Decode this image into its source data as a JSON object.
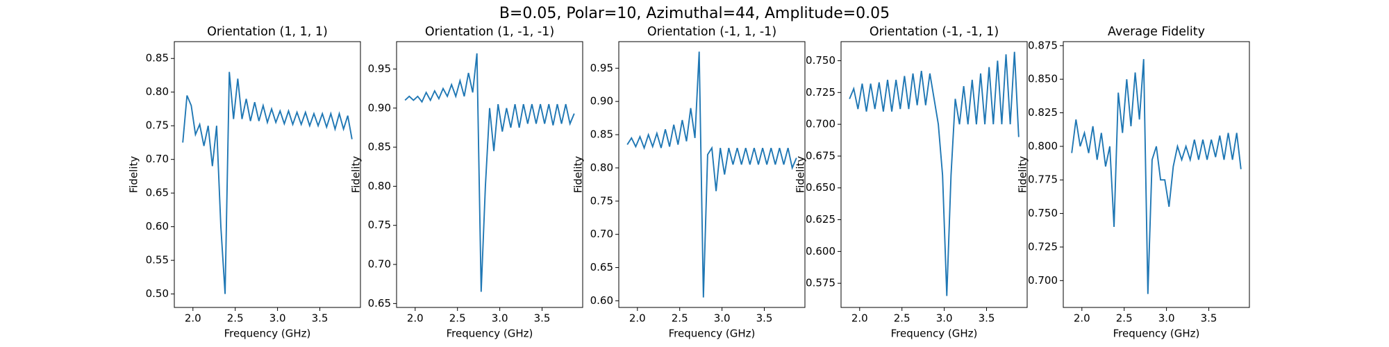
{
  "title": "B=0.05, Polar=10, Azimuthal=44, Amplitude=0.05",
  "chart_data": [
    {
      "type": "line",
      "title": "Orientation (1, 1, 1)",
      "x_label": "Frequency (GHz)",
      "y_label": "Fidelity",
      "x": [
        1.88,
        1.93,
        1.98,
        2.03,
        2.08,
        2.13,
        2.18,
        2.23,
        2.28,
        2.33,
        2.38,
        2.43,
        2.48,
        2.53,
        2.58,
        2.63,
        2.68,
        2.73,
        2.78,
        2.83,
        2.88,
        2.93,
        2.98,
        3.03,
        3.08,
        3.13,
        3.18,
        3.23,
        3.28,
        3.33,
        3.38,
        3.43,
        3.48,
        3.53,
        3.58,
        3.63,
        3.68,
        3.73,
        3.78,
        3.83,
        3.88
      ],
      "series": [
        {
          "color": "#1f77b4",
          "values": [
            0.725,
            0.795,
            0.78,
            0.737,
            0.752,
            0.72,
            0.75,
            0.69,
            0.75,
            0.6,
            0.5,
            0.83,
            0.76,
            0.82,
            0.76,
            0.79,
            0.757,
            0.785,
            0.757,
            0.78,
            0.755,
            0.775,
            0.755,
            0.772,
            0.753,
            0.772,
            0.752,
            0.77,
            0.752,
            0.77,
            0.75,
            0.768,
            0.75,
            0.768,
            0.748,
            0.768,
            0.745,
            0.768,
            0.745,
            0.765,
            0.73
          ]
        }
      ],
      "xlim": [
        1.78,
        3.98
      ],
      "xticks": [
        {
          "value": 2,
          "label": "2.0"
        },
        2.5,
        {
          "value": 3,
          "label": "3.0"
        },
        3.5
      ],
      "ylim": [
        0.48,
        0.875
      ],
      "yticks": [
        {
          "value": 0.5,
          "label": "0.50"
        },
        0.55,
        {
          "value": 0.6,
          "label": "0.60"
        },
        0.65,
        {
          "value": 0.7,
          "label": "0.70"
        },
        0.75,
        {
          "value": 0.8,
          "label": "0.80"
        },
        0.85
      ]
    },
    {
      "type": "line",
      "title": "Orientation (1, -1, -1)",
      "x_label": "Frequency (GHz)",
      "y_label": "Fidelity",
      "x": [
        1.88,
        1.93,
        1.98,
        2.03,
        2.08,
        2.13,
        2.18,
        2.23,
        2.28,
        2.33,
        2.38,
        2.43,
        2.48,
        2.53,
        2.58,
        2.63,
        2.68,
        2.73,
        2.78,
        2.83,
        2.88,
        2.93,
        2.98,
        3.03,
        3.08,
        3.13,
        3.18,
        3.23,
        3.28,
        3.33,
        3.38,
        3.43,
        3.48,
        3.53,
        3.58,
        3.63,
        3.68,
        3.73,
        3.78,
        3.83,
        3.88
      ],
      "series": [
        {
          "color": "#1f77b4",
          "values": [
            0.91,
            0.915,
            0.91,
            0.915,
            0.908,
            0.92,
            0.91,
            0.922,
            0.912,
            0.925,
            0.915,
            0.93,
            0.915,
            0.935,
            0.915,
            0.945,
            0.92,
            0.97,
            0.665,
            0.8,
            0.9,
            0.845,
            0.905,
            0.87,
            0.9,
            0.875,
            0.905,
            0.875,
            0.905,
            0.88,
            0.905,
            0.88,
            0.905,
            0.88,
            0.905,
            0.878,
            0.905,
            0.88,
            0.905,
            0.88,
            0.893
          ]
        }
      ],
      "xlim": [
        1.78,
        3.98
      ],
      "xticks": [
        {
          "value": 2,
          "label": "2.0"
        },
        2.5,
        {
          "value": 3,
          "label": "3.0"
        },
        3.5
      ],
      "ylim": [
        0.645,
        0.985
      ],
      "yticks": [
        0.65,
        {
          "value": 0.7,
          "label": "0.70"
        },
        0.75,
        {
          "value": 0.8,
          "label": "0.80"
        },
        0.85,
        {
          "value": 0.9,
          "label": "0.90"
        },
        0.95
      ]
    },
    {
      "type": "line",
      "title": "Orientation (-1, 1, -1)",
      "x_label": "Frequency (GHz)",
      "y_label": "Fidelity",
      "x": [
        1.88,
        1.93,
        1.98,
        2.03,
        2.08,
        2.13,
        2.18,
        2.23,
        2.28,
        2.33,
        2.38,
        2.43,
        2.48,
        2.53,
        2.58,
        2.63,
        2.68,
        2.73,
        2.78,
        2.83,
        2.88,
        2.93,
        2.98,
        3.03,
        3.08,
        3.13,
        3.18,
        3.23,
        3.28,
        3.33,
        3.38,
        3.43,
        3.48,
        3.53,
        3.58,
        3.63,
        3.68,
        3.73,
        3.78,
        3.83,
        3.88
      ],
      "series": [
        {
          "color": "#1f77b4",
          "values": [
            0.835,
            0.845,
            0.832,
            0.847,
            0.83,
            0.85,
            0.832,
            0.852,
            0.83,
            0.858,
            0.832,
            0.865,
            0.835,
            0.872,
            0.84,
            0.89,
            0.845,
            0.975,
            0.605,
            0.82,
            0.83,
            0.765,
            0.83,
            0.79,
            0.83,
            0.805,
            0.83,
            0.805,
            0.83,
            0.805,
            0.83,
            0.805,
            0.83,
            0.805,
            0.83,
            0.805,
            0.83,
            0.805,
            0.83,
            0.8,
            0.815
          ]
        }
      ],
      "xlim": [
        1.78,
        3.98
      ],
      "xticks": [
        {
          "value": 2,
          "label": "2.0"
        },
        2.5,
        {
          "value": 3,
          "label": "3.0"
        },
        3.5
      ],
      "ylim": [
        0.59,
        0.99
      ],
      "yticks": [
        {
          "value": 0.6,
          "label": "0.60"
        },
        0.65,
        {
          "value": 0.7,
          "label": "0.70"
        },
        0.75,
        {
          "value": 0.8,
          "label": "0.80"
        },
        0.85,
        {
          "value": 0.9,
          "label": "0.90"
        },
        0.95
      ]
    },
    {
      "type": "line",
      "title": "Orientation (-1, -1, 1)",
      "x_label": "Frequency (GHz)",
      "y_label": "Fidelity",
      "x": [
        1.88,
        1.93,
        1.98,
        2.03,
        2.08,
        2.13,
        2.18,
        2.23,
        2.28,
        2.33,
        2.38,
        2.43,
        2.48,
        2.53,
        2.58,
        2.63,
        2.68,
        2.73,
        2.78,
        2.83,
        2.88,
        2.93,
        2.98,
        3.03,
        3.08,
        3.13,
        3.18,
        3.23,
        3.28,
        3.33,
        3.38,
        3.43,
        3.48,
        3.53,
        3.58,
        3.63,
        3.68,
        3.73,
        3.78,
        3.83,
        3.88
      ],
      "series": [
        {
          "color": "#1f77b4",
          "values": [
            0.72,
            0.728,
            0.712,
            0.732,
            0.71,
            0.732,
            0.712,
            0.733,
            0.71,
            0.735,
            0.71,
            0.735,
            0.712,
            0.738,
            0.712,
            0.74,
            0.715,
            0.742,
            0.715,
            0.74,
            0.72,
            0.7,
            0.66,
            0.565,
            0.66,
            0.72,
            0.7,
            0.73,
            0.7,
            0.735,
            0.7,
            0.74,
            0.7,
            0.745,
            0.7,
            0.75,
            0.7,
            0.755,
            0.7,
            0.757,
            0.69
          ]
        }
      ],
      "xlim": [
        1.78,
        3.98
      ],
      "xticks": [
        {
          "value": 2,
          "label": "2.0"
        },
        2.5,
        {
          "value": 3,
          "label": "3.0"
        },
        3.5
      ],
      "ylim": [
        0.556,
        0.765
      ],
      "yticks": [
        0.575,
        {
          "value": 0.6,
          "label": "0.600"
        },
        0.625,
        {
          "value": 0.65,
          "label": "0.650"
        },
        0.675,
        {
          "value": 0.7,
          "label": "0.700"
        },
        0.725,
        {
          "value": 0.75,
          "label": "0.750"
        }
      ]
    },
    {
      "type": "line",
      "title": "Average Fidelity",
      "x_label": "Frequency (GHz)",
      "y_label": "Fidelity",
      "x": [
        1.88,
        1.93,
        1.98,
        2.03,
        2.08,
        2.13,
        2.18,
        2.23,
        2.28,
        2.33,
        2.38,
        2.43,
        2.48,
        2.53,
        2.58,
        2.63,
        2.68,
        2.73,
        2.78,
        2.83,
        2.88,
        2.93,
        2.98,
        3.03,
        3.08,
        3.13,
        3.18,
        3.23,
        3.28,
        3.33,
        3.38,
        3.43,
        3.48,
        3.53,
        3.58,
        3.63,
        3.68,
        3.73,
        3.78,
        3.83,
        3.88
      ],
      "series": [
        {
          "color": "#1f77b4",
          "values": [
            0.795,
            0.82,
            0.8,
            0.81,
            0.795,
            0.815,
            0.79,
            0.81,
            0.785,
            0.8,
            0.74,
            0.84,
            0.81,
            0.85,
            0.815,
            0.855,
            0.82,
            0.865,
            0.69,
            0.79,
            0.8,
            0.775,
            0.775,
            0.755,
            0.785,
            0.8,
            0.79,
            0.8,
            0.79,
            0.805,
            0.79,
            0.805,
            0.79,
            0.805,
            0.792,
            0.808,
            0.79,
            0.81,
            0.79,
            0.81,
            0.783
          ]
        }
      ],
      "xlim": [
        1.78,
        3.98
      ],
      "xticks": [
        {
          "value": 2,
          "label": "2.0"
        },
        2.5,
        {
          "value": 3,
          "label": "3.0"
        },
        3.5
      ],
      "ylim": [
        0.68,
        0.878
      ],
      "yticks": [
        {
          "value": 0.7,
          "label": "0.700"
        },
        0.725,
        {
          "value": 0.75,
          "label": "0.750"
        },
        0.775,
        {
          "value": 0.8,
          "label": "0.800"
        },
        0.825,
        {
          "value": 0.85,
          "label": "0.850"
        },
        0.875
      ]
    }
  ]
}
